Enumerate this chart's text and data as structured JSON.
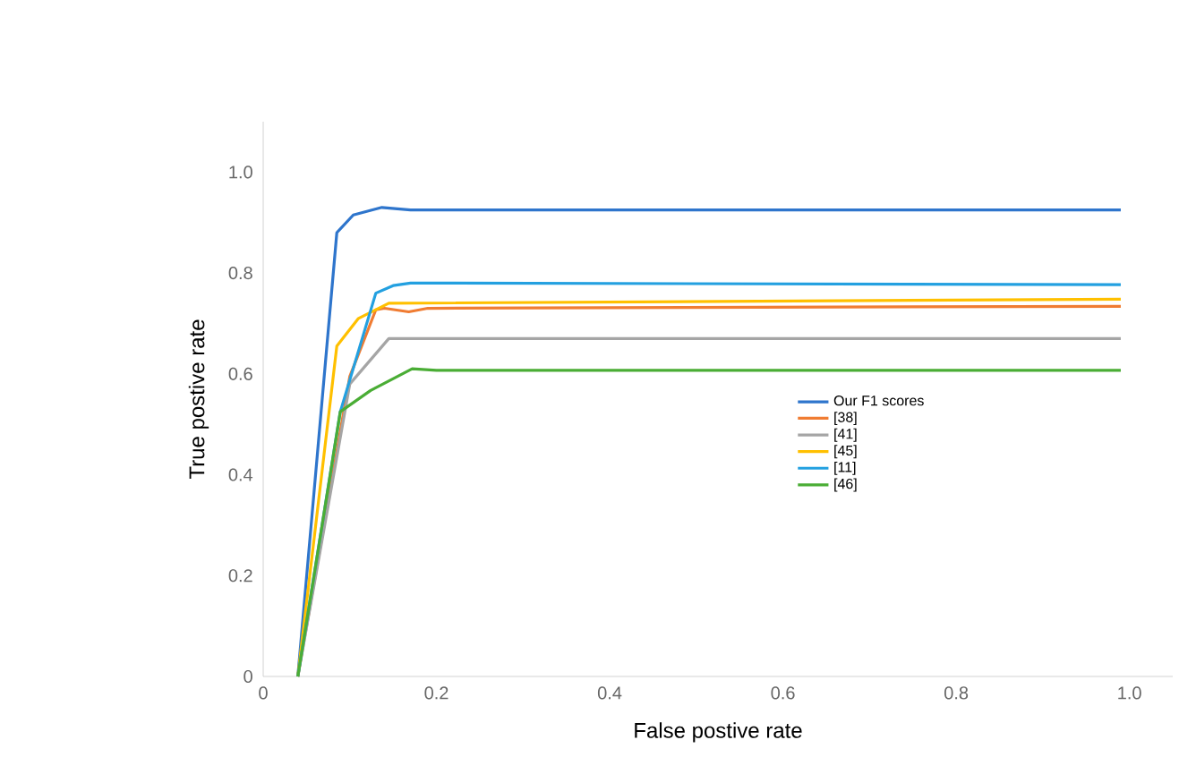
{
  "chart_data": {
    "type": "line",
    "xlabel": "False postive rate",
    "ylabel": "True postive rate",
    "xlim": [
      0,
      1.05
    ],
    "ylim": [
      0,
      1.1
    ],
    "xticks": [
      0,
      0.2,
      0.4,
      0.6,
      0.8,
      {
        "value": 1.0,
        "label": "1.0"
      }
    ],
    "yticks": [
      0,
      0.2,
      0.4,
      0.6,
      0.8,
      {
        "value": 1.0,
        "label": "1.0"
      }
    ],
    "grid": false,
    "legend": "right",
    "marker": "none",
    "line_style": "solid",
    "series": [
      {
        "name": "Our F1 scores",
        "color": "#2e75cc",
        "x": [
          0.04,
          0.085,
          0.104,
          0.137,
          0.17,
          0.99
        ],
        "values": [
          0,
          0.88,
          0.915,
          0.93,
          0.925,
          0.925
        ]
      },
      {
        "name": "[38]",
        "color": "#f07c32",
        "x": [
          0.04,
          0.1,
          0.13,
          0.14,
          0.168,
          0.19,
          0.99
        ],
        "values": [
          0,
          0.595,
          0.727,
          0.73,
          0.723,
          0.73,
          0.734
        ]
      },
      {
        "name": "[41]",
        "color": "#a5a5a5",
        "x": [
          0.04,
          0.1,
          0.145,
          0.99
        ],
        "values": [
          0,
          0.58,
          0.67,
          0.67
        ]
      },
      {
        "name": "[45]",
        "color": "#ffc000",
        "x": [
          0.04,
          0.085,
          0.11,
          0.145,
          0.99
        ],
        "values": [
          0,
          0.655,
          0.71,
          0.74,
          0.748
        ]
      },
      {
        "name": "[11]",
        "color": "#23a0e0",
        "x": [
          0.04,
          0.089,
          0.13,
          0.15,
          0.17,
          0.99
        ],
        "values": [
          0,
          0.525,
          0.76,
          0.775,
          0.78,
          0.777
        ]
      },
      {
        "name": "[46]",
        "color": "#4aad35",
        "x": [
          0.04,
          0.089,
          0.124,
          0.172,
          0.2,
          0.99
        ],
        "values": [
          0,
          0.525,
          0.567,
          0.61,
          0.607,
          0.607
        ]
      }
    ]
  }
}
